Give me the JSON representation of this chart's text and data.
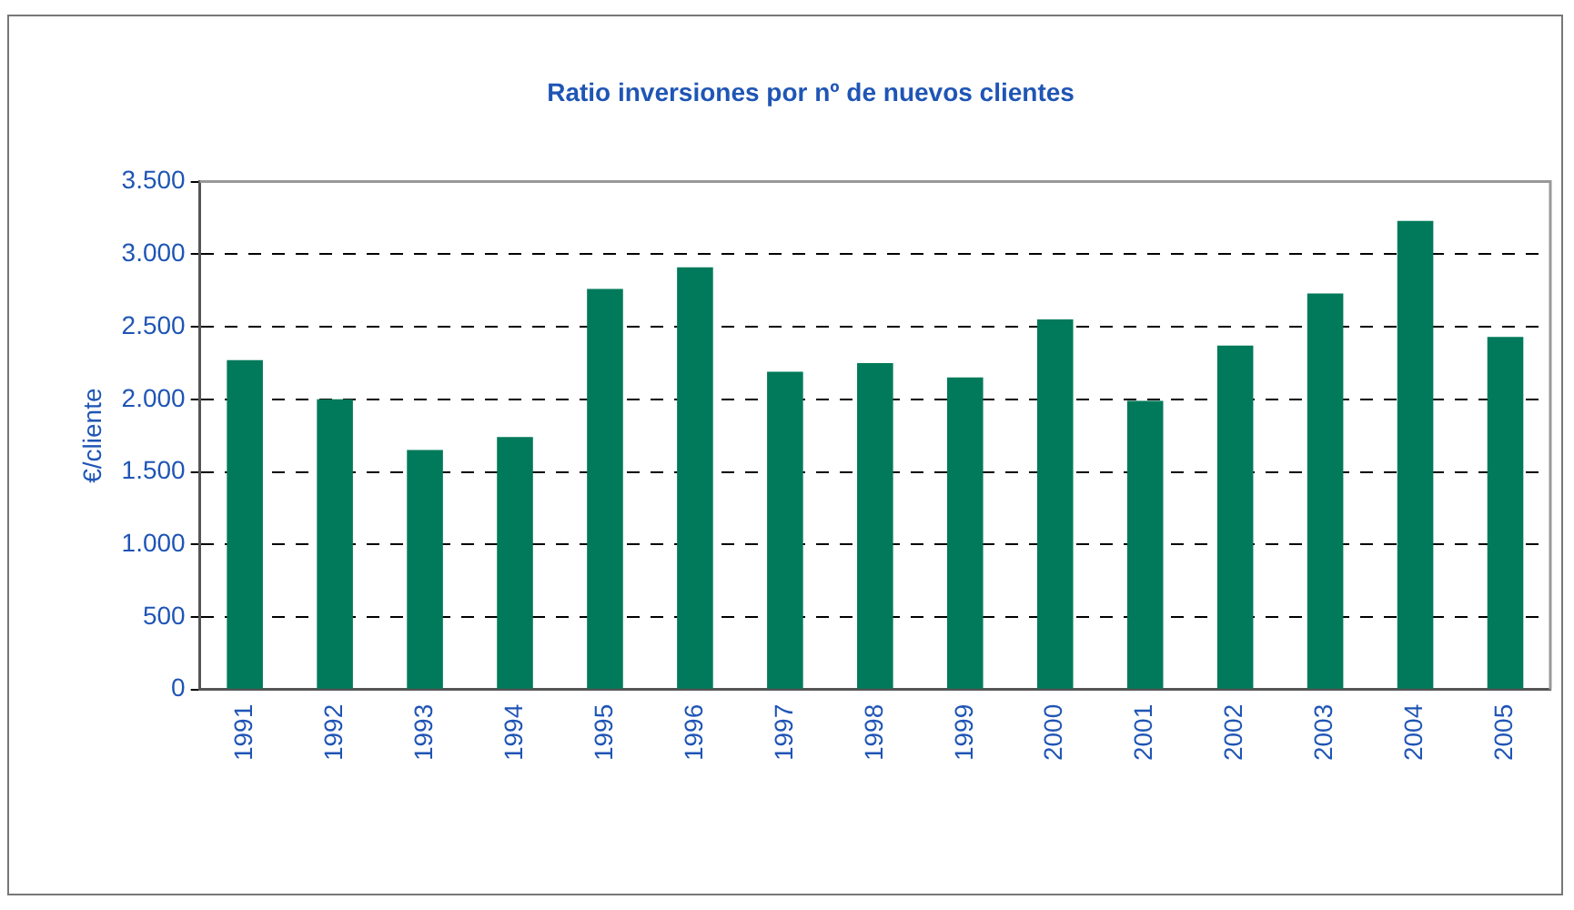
{
  "chart_data": {
    "type": "bar",
    "title": "Ratio inversiones por nº de nuevos clientes",
    "ylabel": "€/cliente",
    "categories": [
      "1991",
      "1992",
      "1993",
      "1994",
      "1995",
      "1996",
      "1997",
      "1998",
      "1999",
      "2000",
      "2001",
      "2002",
      "2003",
      "2004",
      "2005"
    ],
    "values": [
      2270,
      2000,
      1650,
      1740,
      2760,
      2910,
      2190,
      2250,
      2150,
      2550,
      1990,
      2370,
      2730,
      3230,
      2430
    ],
    "color": "#007a5a",
    "ylim": [
      0,
      3500
    ],
    "yticks": [
      {
        "value": 0,
        "label": "0"
      },
      {
        "value": 500,
        "label": "500"
      },
      {
        "value": 1000,
        "label": "1.000"
      },
      {
        "value": 1500,
        "label": "1.500"
      },
      {
        "value": 2000,
        "label": "2.000"
      },
      {
        "value": 2500,
        "label": "2.500"
      },
      {
        "value": 3000,
        "label": "3.000"
      },
      {
        "value": 3500,
        "label": "3.500"
      }
    ],
    "grid": "y"
  }
}
